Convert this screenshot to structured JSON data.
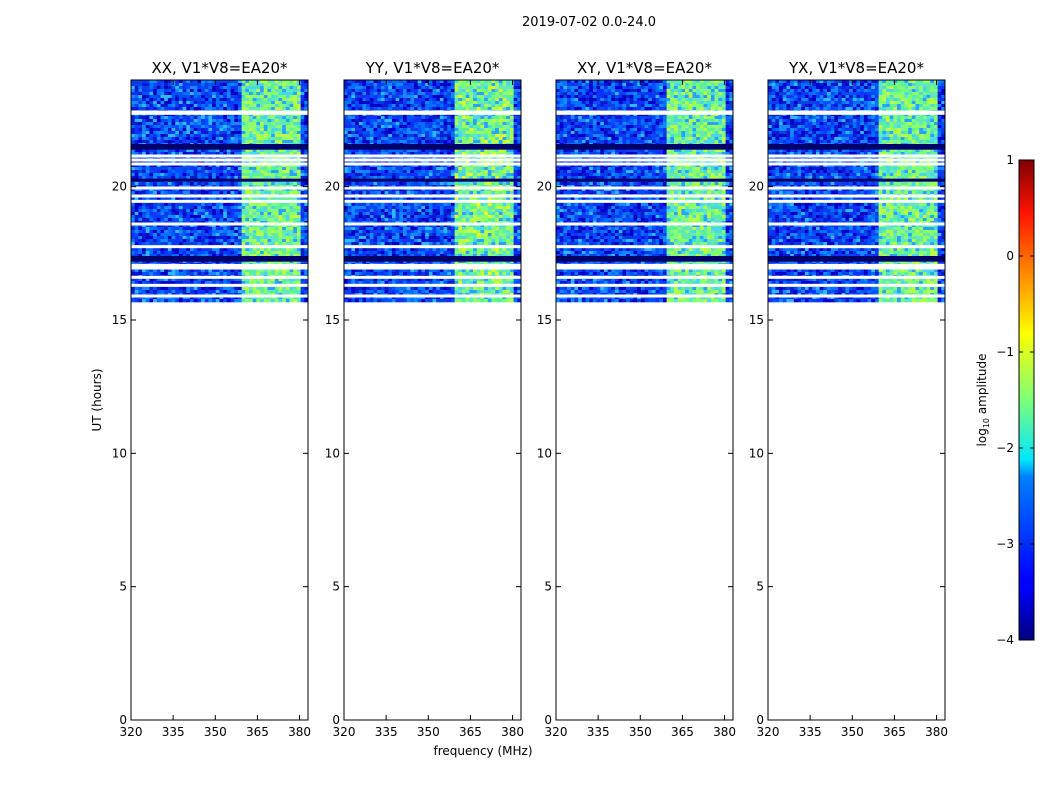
{
  "figure": {
    "suptitle": "2019-07-02 0.0-24.0"
  },
  "chart_data": {
    "type": "heatmap",
    "panels": [
      {
        "title": "XX, V1*V8=EA20*"
      },
      {
        "title": "YY, V1*V8=EA20*"
      },
      {
        "title": "XY, V1*V8=EA20*"
      },
      {
        "title": "YX, V1*V8=EA20*"
      }
    ],
    "xlabel": "frequency (MHz)",
    "ylabel": "UT (hours)",
    "xlim": [
      320,
      383
    ],
    "ylim": [
      0,
      24
    ],
    "xticks": [
      320,
      335,
      350,
      365,
      380
    ],
    "yticks": [
      0,
      5,
      10,
      15,
      20
    ],
    "data_time_range": [
      15.7,
      24.0
    ],
    "bright_band_mhz": [
      360,
      380
    ],
    "blank_rows_ut": [
      22.75,
      22.8,
      21.15,
      21.0,
      20.85,
      19.95,
      19.65,
      19.45,
      18.6,
      17.75,
      17.05,
      16.95,
      16.6,
      16.3,
      15.9
    ],
    "colorbar": {
      "label": "log",
      "label_sub": "10",
      "label_rest": " amplitude",
      "range": [
        -4,
        1
      ],
      "ticks": [
        -4,
        -3,
        -2,
        -1,
        0,
        1
      ],
      "tick_labels": [
        "−4",
        "−3",
        "−2",
        "−1",
        "0",
        "1"
      ]
    }
  }
}
